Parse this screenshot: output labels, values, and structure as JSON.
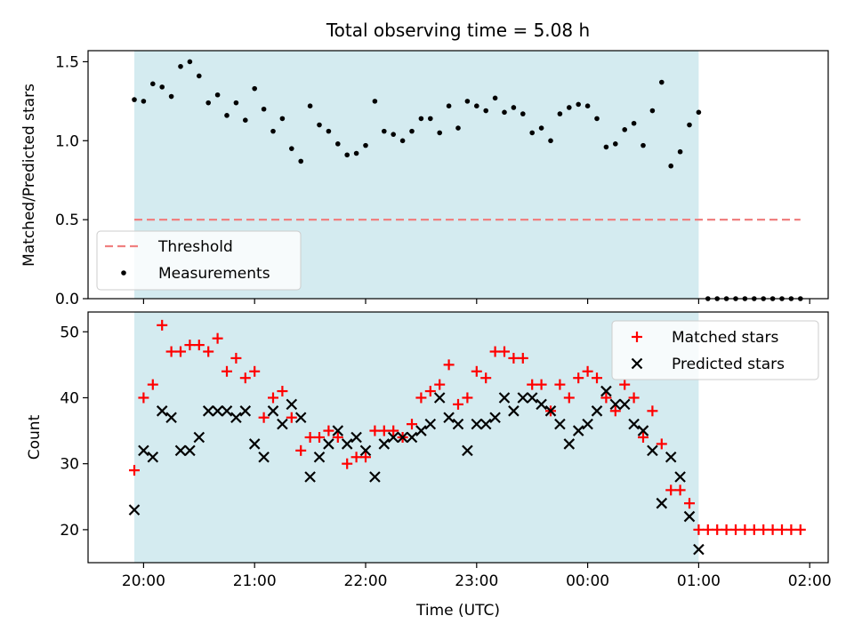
{
  "chart_data": [
    {
      "type": "scatter",
      "title": "Total observing time = 5.08 h",
      "ylabel": "Matched/Predicted stars",
      "xlabel": "",
      "ylim": [
        0,
        1.57
      ],
      "yticks": [
        "0.0",
        "0.5",
        "1.0",
        "1.5"
      ],
      "shaded_interval": [
        "19:55",
        "01:00"
      ],
      "shade_color": "#d4ebf0",
      "legend_position": "lower-left",
      "threshold": {
        "name": "Threshold",
        "value": 0.5,
        "x_range": [
          "19:55",
          "01:55"
        ],
        "color": "#f08080",
        "style": "dashed"
      },
      "series": [
        {
          "name": "Measurements",
          "color": "#000000",
          "marker": "dot",
          "x": [
            "19:55",
            "20:00",
            "20:05",
            "20:10",
            "20:15",
            "20:20",
            "20:25",
            "20:30",
            "20:35",
            "20:40",
            "20:45",
            "20:50",
            "20:55",
            "21:00",
            "21:05",
            "21:10",
            "21:15",
            "21:20",
            "21:25",
            "21:30",
            "21:35",
            "21:40",
            "21:45",
            "21:50",
            "21:55",
            "22:00",
            "22:05",
            "22:10",
            "22:15",
            "22:20",
            "22:25",
            "22:30",
            "22:35",
            "22:40",
            "22:45",
            "22:50",
            "22:55",
            "23:00",
            "23:05",
            "23:10",
            "23:15",
            "23:20",
            "23:25",
            "23:30",
            "23:35",
            "23:40",
            "23:45",
            "23:50",
            "23:55",
            "00:00",
            "00:05",
            "00:10",
            "00:15",
            "00:20",
            "00:25",
            "00:30",
            "00:35",
            "00:40",
            "00:45",
            "00:50",
            "00:55",
            "01:00",
            "01:05",
            "01:10",
            "01:15",
            "01:20",
            "01:25",
            "01:30",
            "01:35",
            "01:40",
            "01:45",
            "01:50",
            "01:55"
          ],
          "y": [
            1.26,
            1.25,
            1.36,
            1.34,
            1.28,
            1.47,
            1.5,
            1.41,
            1.24,
            1.29,
            1.16,
            1.24,
            1.13,
            1.33,
            1.2,
            1.06,
            1.14,
            0.95,
            0.87,
            1.22,
            1.1,
            1.06,
            0.98,
            0.91,
            0.92,
            0.97,
            1.25,
            1.06,
            1.04,
            1.0,
            1.06,
            1.14,
            1.14,
            1.05,
            1.22,
            1.08,
            1.25,
            1.22,
            1.19,
            1.27,
            1.18,
            1.21,
            1.17,
            1.05,
            1.08,
            1.0,
            1.17,
            1.21,
            1.23,
            1.22,
            1.14,
            0.96,
            0.98,
            1.07,
            1.11,
            0.97,
            1.19,
            1.37,
            0.84,
            0.93,
            1.1,
            1.18,
            0,
            0,
            0,
            0,
            0,
            0,
            0,
            0,
            0,
            0,
            0
          ]
        }
      ]
    },
    {
      "type": "scatter",
      "title": "",
      "ylabel": "Count",
      "xlabel": "Time (UTC)",
      "ylim": [
        15,
        53
      ],
      "yticks": [
        "20",
        "30",
        "40",
        "50"
      ],
      "xlim": [
        "19:30",
        "02:10"
      ],
      "xticks": [
        "20:00",
        "21:00",
        "22:00",
        "23:00",
        "00:00",
        "01:00",
        "02:00"
      ],
      "shaded_interval": [
        "19:55",
        "01:00"
      ],
      "shade_color": "#d4ebf0",
      "legend_position": "upper-right",
      "x": [
        "19:55",
        "20:00",
        "20:05",
        "20:10",
        "20:15",
        "20:20",
        "20:25",
        "20:30",
        "20:35",
        "20:40",
        "20:45",
        "20:50",
        "20:55",
        "21:00",
        "21:05",
        "21:10",
        "21:15",
        "21:20",
        "21:25",
        "21:30",
        "21:35",
        "21:40",
        "21:45",
        "21:50",
        "21:55",
        "22:00",
        "22:05",
        "22:10",
        "22:15",
        "22:20",
        "22:25",
        "22:30",
        "22:35",
        "22:40",
        "22:45",
        "22:50",
        "22:55",
        "23:00",
        "23:05",
        "23:10",
        "23:15",
        "23:20",
        "23:25",
        "23:30",
        "23:35",
        "23:40",
        "23:45",
        "23:50",
        "23:55",
        "00:00",
        "00:05",
        "00:10",
        "00:15",
        "00:20",
        "00:25",
        "00:30",
        "00:35",
        "00:40",
        "00:45",
        "00:50",
        "00:55",
        "01:00",
        "01:05",
        "01:10",
        "01:15",
        "01:20",
        "01:25",
        "01:30",
        "01:35",
        "01:40",
        "01:45",
        "01:50",
        "01:55"
      ],
      "series": [
        {
          "name": "Matched stars",
          "color": "#ff0000",
          "marker": "plus",
          "values": [
            29,
            40,
            42,
            51,
            47,
            47,
            48,
            48,
            47,
            49,
            44,
            46,
            43,
            44,
            37,
            40,
            41,
            37,
            32,
            34,
            34,
            35,
            34,
            30,
            31,
            31,
            35,
            35,
            35,
            34,
            36,
            40,
            41,
            42,
            45,
            39,
            40,
            44,
            43,
            47,
            47,
            46,
            46,
            42,
            42,
            38,
            42,
            40,
            43,
            44,
            43,
            40,
            38,
            42,
            40,
            34,
            38,
            33,
            26,
            26,
            24,
            20,
            20,
            20,
            20,
            20,
            20,
            20,
            20,
            20,
            20,
            20,
            20
          ]
        },
        {
          "name": "Predicted stars",
          "color": "#000000",
          "marker": "x",
          "values": [
            23,
            32,
            31,
            38,
            37,
            32,
            32,
            34,
            38,
            38,
            38,
            37,
            38,
            33,
            31,
            38,
            36,
            39,
            37,
            28,
            31,
            33,
            35,
            33,
            34,
            32,
            28,
            33,
            34,
            34,
            34,
            35,
            36,
            40,
            37,
            36,
            32,
            36,
            36,
            37,
            40,
            38,
            40,
            40,
            39,
            38,
            36,
            33,
            35,
            36,
            38,
            41,
            39,
            39,
            36,
            35,
            32,
            24,
            31,
            28,
            22,
            17
          ]
        }
      ]
    }
  ]
}
